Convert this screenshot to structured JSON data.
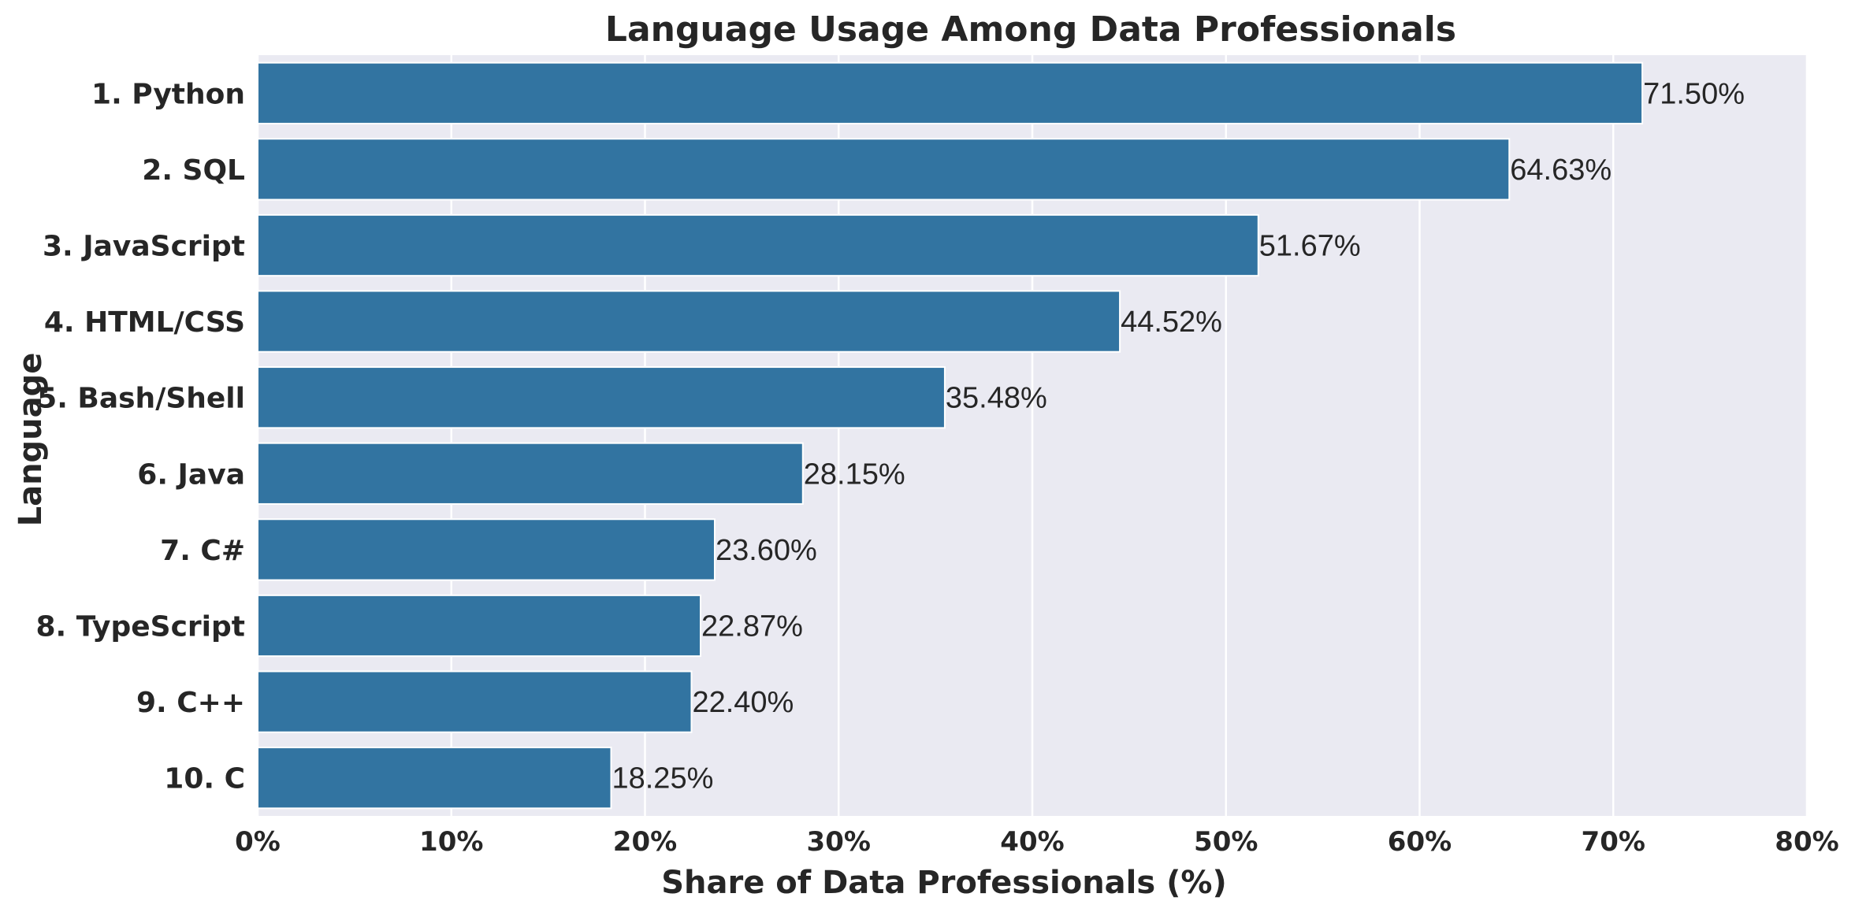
{
  "chart_data": {
    "type": "bar",
    "orientation": "horizontal",
    "title": "Language Usage Among Data Professionals",
    "xlabel": "Share of Data Professionals (%)",
    "ylabel": "Language",
    "categories": [
      "1. Python",
      "2. SQL",
      "3. JavaScript",
      "4. HTML/CSS",
      "5. Bash/Shell",
      "6. Java",
      "7. C#",
      "8. TypeScript",
      "9. C++",
      "10. C"
    ],
    "values": [
      71.5,
      64.63,
      51.67,
      44.52,
      35.48,
      28.15,
      23.6,
      22.87,
      22.4,
      18.25
    ],
    "data_labels": [
      "71.50%",
      "64.63%",
      "51.67%",
      "44.52%",
      "35.48%",
      "28.15%",
      "23.60%",
      "22.87%",
      "22.40%",
      "18.25%"
    ],
    "xticks": [
      0,
      10,
      20,
      30,
      40,
      50,
      60,
      70,
      80
    ],
    "xtick_labels": [
      "0%",
      "10%",
      "20%",
      "30%",
      "40%",
      "50%",
      "60%",
      "70%",
      "80%"
    ],
    "xlim": [
      0,
      80
    ],
    "grid": true,
    "bar_color": "#3274a1",
    "background_color": "#eaeaf2",
    "grid_color": "#ffffff"
  }
}
